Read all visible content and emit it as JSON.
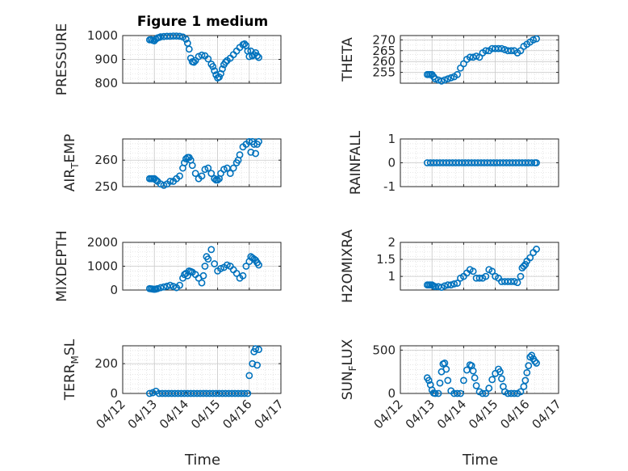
{
  "figure": {
    "title": "Figure 1 medium",
    "marker_color": "#0072BD",
    "axis_color": "#262626",
    "grid_color": "#dcdcdc"
  },
  "chart_data": [
    {
      "type": "scatter",
      "id": "pressure",
      "ylabel": "PRESSURE",
      "ylim": [
        800,
        1000
      ],
      "yticks": [
        800,
        900,
        1000
      ],
      "xlim": [
        0,
        5
      ],
      "x": [
        0.85,
        0.9,
        0.95,
        1.0,
        1.05,
        1.1,
        1.15,
        1.2,
        1.3,
        1.4,
        1.5,
        1.6,
        1.7,
        1.8,
        1.9,
        2.0,
        2.05,
        2.1,
        2.15,
        2.2,
        2.25,
        2.3,
        2.4,
        2.5,
        2.6,
        2.7,
        2.8,
        2.85,
        2.9,
        2.95,
        3.0,
        3.05,
        3.1,
        3.15,
        3.2,
        3.25,
        3.3,
        3.4,
        3.5,
        3.6,
        3.7,
        3.8,
        3.85,
        3.9,
        3.95,
        4.0,
        4.05,
        4.1,
        4.15,
        4.2,
        4.25,
        4.3
      ],
      "y": [
        982,
        983,
        980,
        978,
        985,
        990,
        992,
        995,
        996,
        997,
        997,
        998,
        998,
        997,
        994,
        985,
        968,
        943,
        905,
        890,
        888,
        895,
        912,
        918,
        915,
        902,
        880,
        870,
        852,
        835,
        822,
        826,
        840,
        860,
        878,
        888,
        895,
        905,
        920,
        935,
        950,
        962,
        965,
        958,
        935,
        912,
        935,
        915,
        920,
        928,
        915,
        908
      ]
    },
    {
      "type": "scatter",
      "id": "theta",
      "ylabel": "THETA",
      "ylim": [
        250,
        272
      ],
      "yticks": [
        255,
        260,
        265,
        270
      ],
      "xlim": [
        0,
        5
      ],
      "x": [
        0.85,
        0.9,
        0.95,
        1.0,
        1.05,
        1.1,
        1.2,
        1.3,
        1.4,
        1.5,
        1.6,
        1.7,
        1.8,
        1.9,
        2.0,
        2.1,
        2.2,
        2.3,
        2.4,
        2.5,
        2.6,
        2.7,
        2.8,
        2.9,
        3.0,
        3.1,
        3.2,
        3.3,
        3.4,
        3.5,
        3.6,
        3.7,
        3.8,
        3.9,
        4.0,
        4.1,
        4.2,
        4.3
      ],
      "y": [
        254,
        254,
        254,
        254,
        253,
        252,
        251.5,
        251,
        251.5,
        252,
        252.5,
        253,
        254,
        257,
        259,
        261,
        262,
        262,
        262.5,
        262,
        264,
        265,
        265,
        266,
        266,
        266,
        266,
        265.5,
        265,
        265,
        265,
        264,
        265,
        267,
        268,
        269,
        270,
        270.5
      ]
    },
    {
      "type": "scatter",
      "id": "airtemp",
      "ylabel": "AIR_TEMP",
      "ylabel_main": "AIR",
      "ylabel_sub": "T",
      "ylabel_rest": "EMP",
      "ylim": [
        250,
        268
      ],
      "yticks": [
        250,
        260
      ],
      "xlim": [
        0,
        5
      ],
      "x": [
        0.85,
        0.9,
        0.95,
        1.0,
        1.05,
        1.1,
        1.2,
        1.3,
        1.4,
        1.5,
        1.6,
        1.7,
        1.8,
        1.9,
        1.95,
        2.0,
        2.05,
        2.1,
        2.15,
        2.2,
        2.3,
        2.4,
        2.5,
        2.6,
        2.7,
        2.8,
        2.9,
        2.95,
        3.0,
        3.05,
        3.1,
        3.2,
        3.3,
        3.4,
        3.5,
        3.6,
        3.65,
        3.7,
        3.8,
        3.9,
        4.0,
        4.05,
        4.1,
        4.15,
        4.2,
        4.25,
        4.3
      ],
      "y": [
        253,
        253,
        253,
        253,
        252.5,
        252,
        251,
        250.5,
        251,
        252,
        252,
        253,
        254,
        257,
        259,
        260.5,
        261,
        261,
        260,
        258,
        255,
        253,
        254,
        256.5,
        257,
        255,
        253,
        252.5,
        252.5,
        253,
        255,
        256.5,
        257,
        255,
        257,
        259,
        260,
        262,
        265,
        266,
        267,
        263,
        267,
        266,
        262.5,
        266,
        267
      ]
    },
    {
      "type": "scatter",
      "id": "rainfall",
      "ylabel": "RAINFALL",
      "ylim": [
        -1,
        1
      ],
      "yticks": [
        -1,
        0,
        1
      ],
      "xlim": [
        0,
        5
      ],
      "x": [
        0.85,
        0.95,
        1.05,
        1.15,
        1.25,
        1.35,
        1.45,
        1.55,
        1.65,
        1.75,
        1.85,
        1.95,
        2.05,
        2.15,
        2.25,
        2.35,
        2.45,
        2.55,
        2.65,
        2.75,
        2.85,
        2.95,
        3.05,
        3.15,
        3.25,
        3.35,
        3.45,
        3.55,
        3.65,
        3.75,
        3.85,
        3.95,
        4.05,
        4.15,
        4.25,
        4.3
      ],
      "y": [
        0,
        0,
        0,
        0,
        0,
        0,
        0,
        0,
        0,
        0,
        0,
        0,
        0,
        0,
        0,
        0,
        0,
        0,
        0,
        0,
        0,
        0,
        0,
        0,
        0,
        0,
        0,
        0,
        0,
        0,
        0,
        0,
        0,
        0,
        0,
        0
      ]
    },
    {
      "type": "scatter",
      "id": "mixdepth",
      "ylabel": "MIXDEPTH",
      "ylim": [
        0,
        2000
      ],
      "yticks": [
        0,
        1000,
        2000
      ],
      "xlim": [
        0,
        5
      ],
      "x": [
        0.85,
        0.9,
        0.95,
        1.0,
        1.05,
        1.1,
        1.2,
        1.3,
        1.4,
        1.5,
        1.6,
        1.7,
        1.8,
        1.9,
        1.95,
        2.0,
        2.05,
        2.1,
        2.15,
        2.2,
        2.3,
        2.4,
        2.5,
        2.55,
        2.6,
        2.65,
        2.7,
        2.8,
        2.9,
        3.0,
        3.1,
        3.2,
        3.3,
        3.4,
        3.5,
        3.6,
        3.7,
        3.8,
        3.9,
        4.0,
        4.05,
        4.1,
        4.15,
        4.2,
        4.25,
        4.3
      ],
      "y": [
        60,
        50,
        40,
        30,
        40,
        60,
        100,
        130,
        160,
        200,
        150,
        100,
        200,
        500,
        650,
        700,
        600,
        800,
        780,
        750,
        650,
        500,
        300,
        600,
        1000,
        1400,
        1300,
        1700,
        1100,
        800,
        900,
        950,
        1050,
        1000,
        850,
        700,
        500,
        600,
        1000,
        1200,
        1400,
        1350,
        1300,
        1250,
        1150,
        1050
      ]
    },
    {
      "type": "scatter",
      "id": "h2omixra",
      "ylabel": "H2OMIXRA",
      "ylim": [
        0.6,
        2.0
      ],
      "yticks": [
        1,
        1.5,
        2
      ],
      "xlim": [
        0,
        5
      ],
      "x": [
        0.85,
        0.9,
        0.95,
        1.0,
        1.05,
        1.1,
        1.2,
        1.3,
        1.4,
        1.5,
        1.6,
        1.7,
        1.8,
        1.9,
        2.0,
        2.1,
        2.2,
        2.3,
        2.4,
        2.5,
        2.6,
        2.7,
        2.8,
        2.9,
        3.0,
        3.1,
        3.2,
        3.3,
        3.4,
        3.5,
        3.6,
        3.7,
        3.8,
        3.85,
        3.9,
        3.95,
        4.0,
        4.1,
        4.2,
        4.3
      ],
      "y": [
        0.75,
        0.75,
        0.75,
        0.75,
        0.72,
        0.7,
        0.7,
        0.68,
        0.72,
        0.75,
        0.75,
        0.78,
        0.8,
        0.95,
        1.0,
        1.1,
        1.2,
        1.15,
        0.95,
        0.95,
        0.95,
        1.0,
        1.2,
        1.15,
        1.0,
        0.95,
        0.85,
        0.85,
        0.85,
        0.85,
        0.85,
        0.82,
        1.0,
        1.25,
        1.3,
        1.35,
        1.45,
        1.55,
        1.7,
        1.8
      ]
    },
    {
      "type": "scatter",
      "id": "terrmsl",
      "ylabel": "TERR_MSL",
      "ylabel_main": "TERR",
      "ylabel_sub": "M",
      "ylabel_rest": "SL",
      "ylim": [
        0,
        320
      ],
      "yticks": [
        0,
        200
      ],
      "xlim": [
        0,
        5
      ],
      "x": [
        0.85,
        0.95,
        1.05,
        1.15,
        1.25,
        1.35,
        1.45,
        1.55,
        1.65,
        1.75,
        1.85,
        1.95,
        2.05,
        2.15,
        2.25,
        2.35,
        2.45,
        2.55,
        2.65,
        2.75,
        2.85,
        2.95,
        3.05,
        3.15,
        3.25,
        3.35,
        3.45,
        3.55,
        3.65,
        3.75,
        3.85,
        3.95,
        4.0,
        4.1,
        4.15,
        4.2,
        4.25,
        4.3
      ],
      "y": [
        0,
        5,
        15,
        0,
        0,
        0,
        0,
        0,
        0,
        0,
        0,
        0,
        0,
        0,
        0,
        0,
        0,
        0,
        0,
        0,
        0,
        0,
        0,
        0,
        0,
        0,
        0,
        0,
        0,
        0,
        0,
        0,
        120,
        200,
        280,
        300,
        190,
        295
      ]
    },
    {
      "type": "scatter",
      "id": "sunflux",
      "ylabel": "SUN_FLUX",
      "ylabel_main": "SUN",
      "ylabel_sub": "F",
      "ylabel_rest": "LUX",
      "ylim": [
        0,
        550
      ],
      "yticks": [
        0,
        500
      ],
      "xlim": [
        0,
        5
      ],
      "x": [
        0.85,
        0.9,
        0.95,
        1.0,
        1.05,
        1.1,
        1.2,
        1.25,
        1.3,
        1.35,
        1.4,
        1.45,
        1.5,
        1.6,
        1.7,
        1.8,
        1.9,
        2.0,
        2.1,
        2.2,
        2.25,
        2.3,
        2.35,
        2.4,
        2.5,
        2.6,
        2.7,
        2.8,
        2.9,
        3.0,
        3.1,
        3.15,
        3.2,
        3.25,
        3.3,
        3.4,
        3.5,
        3.6,
        3.7,
        3.8,
        3.9,
        3.95,
        4.0,
        4.05,
        4.1,
        4.15,
        4.2,
        4.25,
        4.3
      ],
      "y": [
        180,
        150,
        100,
        40,
        5,
        0,
        0,
        120,
        250,
        340,
        350,
        280,
        150,
        30,
        0,
        0,
        0,
        150,
        270,
        330,
        320,
        260,
        180,
        90,
        20,
        0,
        0,
        60,
        160,
        230,
        280,
        250,
        170,
        80,
        20,
        0,
        0,
        0,
        0,
        20,
        80,
        150,
        240,
        320,
        420,
        440,
        400,
        370,
        350
      ]
    }
  ],
  "xaxis": {
    "ticklabels": [
      "04/12",
      "04/13",
      "04/14",
      "04/15",
      "04/16",
      "04/17"
    ],
    "label": "Time"
  }
}
